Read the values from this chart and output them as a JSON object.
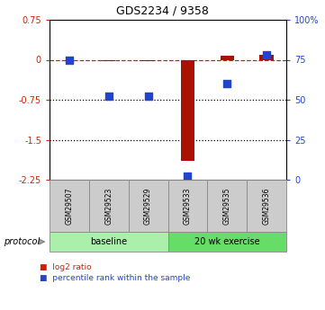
{
  "title": "GDS2234 / 9358",
  "samples": [
    "GSM29507",
    "GSM29523",
    "GSM29529",
    "GSM29533",
    "GSM29535",
    "GSM29536"
  ],
  "log2_ratio": [
    0.0,
    -0.02,
    -0.02,
    -1.9,
    0.07,
    0.1
  ],
  "percentile_rank": [
    75.0,
    52.0,
    52.0,
    2.0,
    60.0,
    78.0
  ],
  "ylim_left": [
    -2.25,
    0.75
  ],
  "ylim_right": [
    0,
    100
  ],
  "yticks_left": [
    0.75,
    0.0,
    -0.75,
    -1.5,
    -2.25
  ],
  "yticks_right": [
    100,
    75,
    50,
    25,
    0
  ],
  "ytick_labels_left": [
    "0.75",
    "0",
    "-0.75",
    "-1.5",
    "-2.25"
  ],
  "ytick_labels_right": [
    "100%",
    "75",
    "50",
    "25",
    "0"
  ],
  "hlines": [
    0.0,
    -0.75,
    -1.5
  ],
  "hline_styles": [
    "dashed",
    "dotted",
    "dotted"
  ],
  "hline_colors": [
    "#cc2200",
    "#000000",
    "#000000"
  ],
  "bar_color": "#aa1100",
  "scatter_color": "#2244cc",
  "group_labels": [
    "baseline",
    "20 wk exercise"
  ],
  "group_colors": [
    "#aaf0aa",
    "#66dd66"
  ],
  "protocol_label": "protocol",
  "legend_items": [
    {
      "label": "log2 ratio",
      "color": "#cc2200"
    },
    {
      "label": "percentile rank within the sample",
      "color": "#2244cc"
    }
  ],
  "bg_color": "#ffffff",
  "plot_bg": "#ffffff",
  "bar_width": 0.35,
  "scatter_size": 30
}
